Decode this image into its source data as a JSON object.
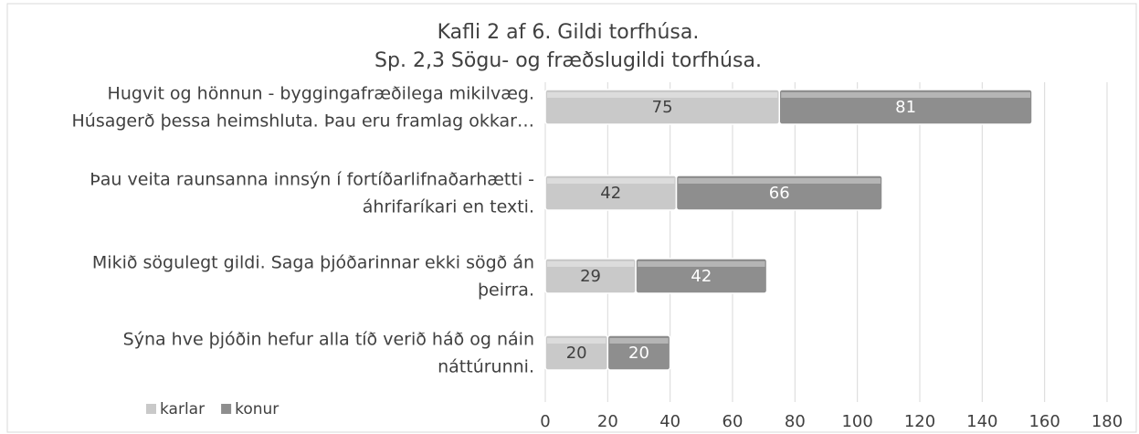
{
  "chart_data": {
    "type": "stacked-bar-horizontal",
    "title": "Kafli 2 af 6. Gildi torfhúsa.",
    "subtitle": "Sp. 2,3 Sögu- og fræðslugildi torfhúsa.",
    "categories": [
      [
        "Hugvit og hönnun - byggingafræðilega mikilvæg.",
        "Húsagerð þessa heimshluta. Þau eru framlag okkar…"
      ],
      [
        "Þau veita raunsanna innsýn í fortíðarlifnaðarhætti -",
        "áhrifaríkari en texti."
      ],
      [
        "Mikið sögulegt gildi. Saga þjóðarinnar ekki sögð án",
        "þeirra."
      ],
      [
        "Sýna hve þjóðin hefur alla tíð verið háð og náin",
        "náttúrunni."
      ]
    ],
    "series": [
      {
        "name": "karlar",
        "color": "#c9c9c9",
        "values": [
          75,
          42,
          29,
          20
        ]
      },
      {
        "name": "konur",
        "color": "#8e8e8e",
        "values": [
          81,
          66,
          42,
          20
        ]
      }
    ],
    "xlim": [
      0,
      180
    ],
    "xticks": [
      0,
      20,
      40,
      60,
      80,
      100,
      120,
      140,
      160,
      180
    ],
    "grid": true,
    "legend": "bottom-left"
  }
}
